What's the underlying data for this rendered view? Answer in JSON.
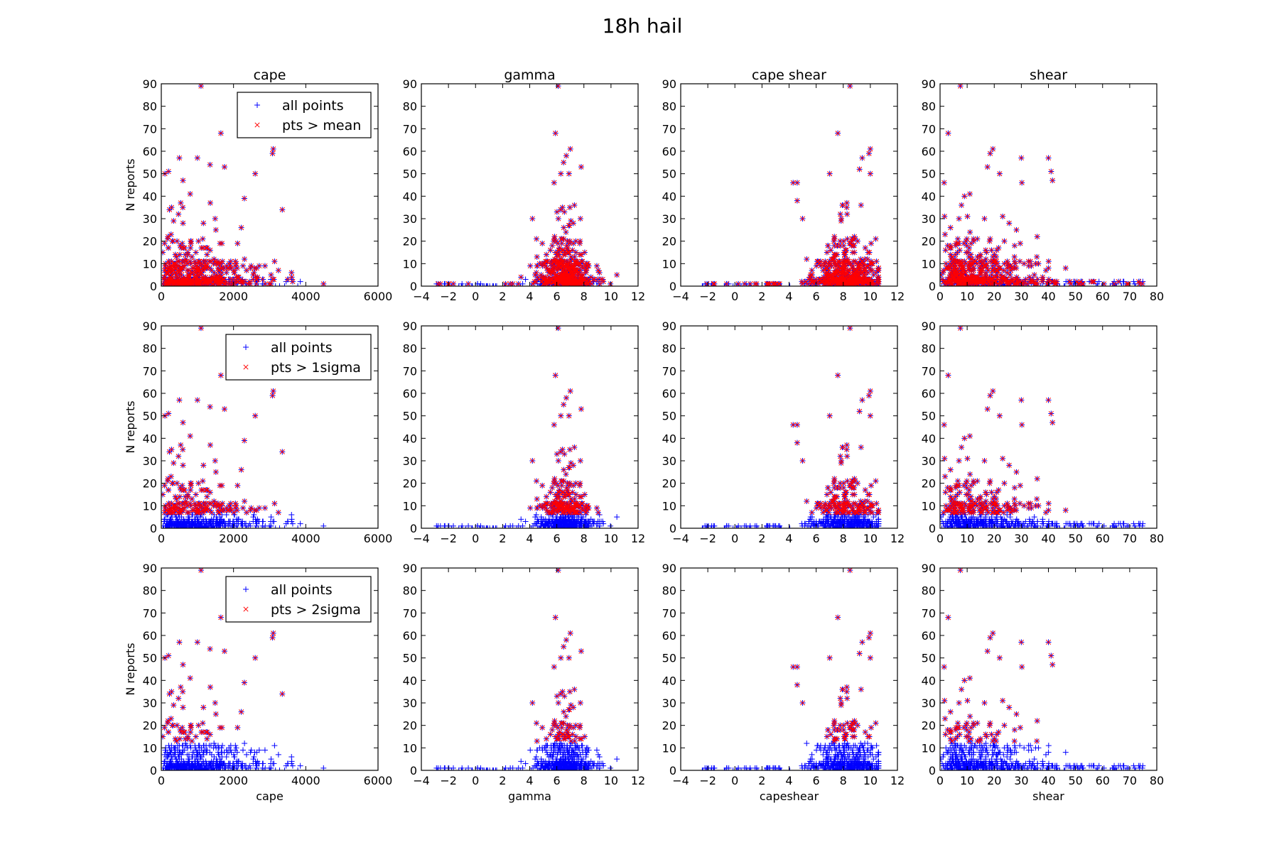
{
  "figure_title": "18h hail",
  "chart_data": {
    "type": "scatter",
    "title": "18h hail",
    "ylabel": "N reports",
    "ylim": [
      0,
      90
    ],
    "yticks": [
      0,
      10,
      20,
      30,
      40,
      50,
      60,
      70,
      80,
      90
    ],
    "series_colors": {
      "all points": "#0000ff",
      "highlighted": "#ff0000"
    },
    "markers": {
      "all points": "+",
      "highlighted": "x"
    },
    "columns": [
      {
        "title": "cape",
        "xlabel": "cape",
        "xlim": [
          0,
          6000
        ],
        "xticks": [
          "0",
          "2000",
          "4000",
          "6000"
        ]
      },
      {
        "title": "gamma",
        "xlabel": "gamma",
        "xlim": [
          -4,
          12
        ],
        "xticks": [
          "−4",
          "−2",
          "0",
          "2",
          "4",
          "6",
          "8",
          "10",
          "12"
        ]
      },
      {
        "title": "cape shear",
        "xlabel": "capeshear",
        "xlim": [
          -4,
          12
        ],
        "xticks": [
          "−4",
          "−2",
          "0",
          "2",
          "4",
          "6",
          "8",
          "10",
          "12"
        ]
      },
      {
        "title": "shear",
        "xlabel": "shear",
        "xlim": [
          0,
          80
        ],
        "xticks": [
          "0",
          "10",
          "20",
          "30",
          "40",
          "50",
          "60",
          "70",
          "80"
        ]
      }
    ],
    "rows": [
      {
        "legend": [
          "all points",
          "pts > mean"
        ],
        "threshold": "mean"
      },
      {
        "legend": [
          "all points",
          "pts > 1sigma"
        ],
        "threshold": "1sigma"
      },
      {
        "legend": [
          "all points",
          "pts > 2sigma"
        ],
        "threshold": "2sigma"
      }
    ],
    "notable_points": {
      "cape": [
        [
          1100,
          89
        ],
        [
          1650,
          68
        ],
        [
          3100,
          61
        ],
        [
          3080,
          59
        ],
        [
          500,
          57
        ],
        [
          1000,
          57
        ],
        [
          1350,
          54
        ],
        [
          1750,
          53
        ],
        [
          2600,
          50
        ],
        [
          100,
          50
        ],
        [
          200,
          51
        ],
        [
          600,
          47
        ],
        [
          3350,
          34
        ],
        [
          2300,
          39
        ],
        [
          800,
          41
        ]
      ],
      "gamma": [
        [
          6.1,
          89
        ],
        [
          5.9,
          68
        ],
        [
          7.0,
          61
        ],
        [
          6.7,
          58
        ],
        [
          7.8,
          53
        ],
        [
          6.5,
          55
        ],
        [
          6.9,
          50
        ],
        [
          6.3,
          50
        ],
        [
          5.8,
          46
        ],
        [
          4.2,
          30
        ],
        [
          4.5,
          21
        ]
      ],
      "cape shear": [
        [
          8.5,
          89
        ],
        [
          7.6,
          68
        ],
        [
          10.0,
          61
        ],
        [
          9.9,
          59
        ],
        [
          9.4,
          57
        ],
        [
          10.0,
          50
        ],
        [
          9.2,
          52
        ],
        [
          4.3,
          46
        ],
        [
          4.6,
          46
        ],
        [
          7.0,
          50
        ],
        [
          4.6,
          38
        ],
        [
          5.0,
          30
        ]
      ],
      "shear": [
        [
          7.5,
          89
        ],
        [
          3.0,
          68
        ],
        [
          19.5,
          61
        ],
        [
          18.5,
          59
        ],
        [
          30.0,
          57
        ],
        [
          40.0,
          57
        ],
        [
          41.0,
          51
        ],
        [
          41.5,
          47
        ],
        [
          30.2,
          46
        ],
        [
          17.5,
          53
        ],
        [
          22.0,
          50
        ],
        [
          1.5,
          46
        ],
        [
          11.0,
          41
        ],
        [
          9.0,
          40
        ]
      ]
    }
  }
}
